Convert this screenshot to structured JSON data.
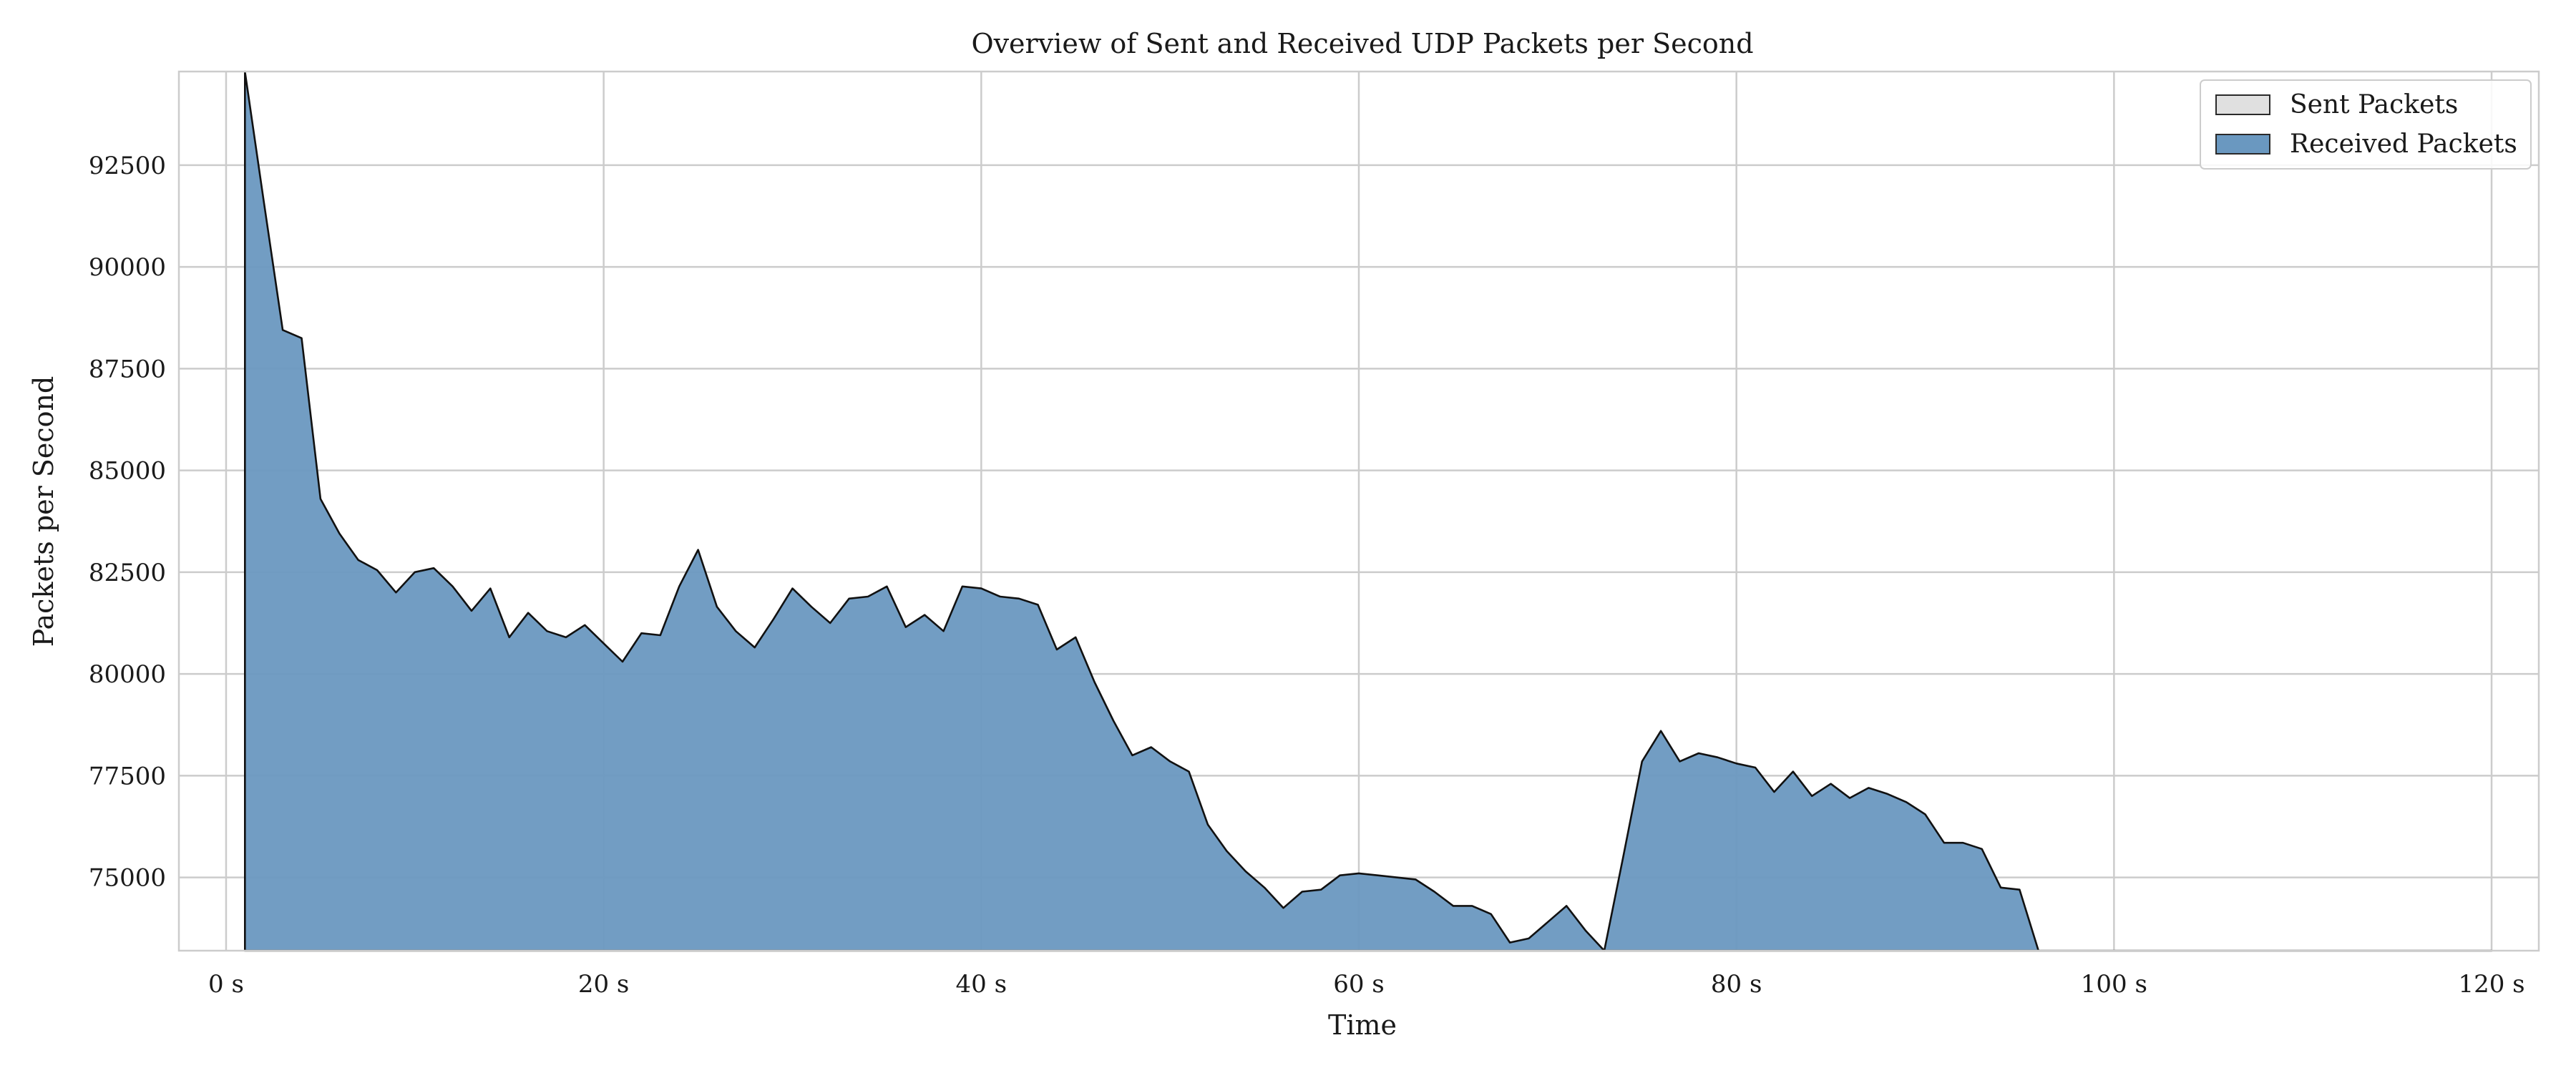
{
  "chart_data": {
    "type": "area",
    "title": "Overview of Sent and Received UDP Packets per Second",
    "xlabel": "Time",
    "ylabel": "Packets per Second",
    "xlim": [
      -2.5,
      122.5
    ],
    "ylim": [
      73200,
      94800
    ],
    "xticks": [
      0,
      20,
      40,
      60,
      80,
      100,
      120
    ],
    "xtick_labels": [
      "0 s",
      "20 s",
      "40 s",
      "60 s",
      "80 s",
      "100 s",
      "120 s"
    ],
    "yticks": [
      75000,
      77500,
      80000,
      82500,
      85000,
      87500,
      90000,
      92500
    ],
    "ytick_labels": [
      "75000",
      "77500",
      "80000",
      "82500",
      "85000",
      "87500",
      "90000",
      "92500"
    ],
    "grid": true,
    "legend_position": "top-right",
    "series": [
      {
        "name": "Sent Packets",
        "color": "#e0e0e0",
        "x": [],
        "values": []
      },
      {
        "name": "Received Packets",
        "color": "#6a98c0",
        "x": [
          1,
          2,
          3,
          4,
          5,
          6,
          7,
          8,
          9,
          10,
          11,
          12,
          13,
          14,
          15,
          16,
          17,
          18,
          19,
          20,
          21,
          22,
          23,
          24,
          25,
          26,
          27,
          28,
          29,
          30,
          31,
          32,
          33,
          34,
          35,
          36,
          37,
          38,
          39,
          40,
          41,
          42,
          43,
          44,
          45,
          46,
          47,
          48,
          49,
          50,
          51,
          52,
          53,
          54,
          55,
          56,
          57,
          58,
          59,
          60,
          61,
          62,
          63,
          64,
          65,
          66,
          67,
          68,
          69,
          70,
          71,
          72,
          73,
          74,
          75,
          76,
          77,
          78,
          79,
          80,
          81,
          82,
          83,
          84,
          85,
          86,
          87,
          88,
          89,
          90,
          91,
          92,
          93,
          94,
          95,
          96,
          97,
          98,
          99,
          100,
          101,
          102,
          103,
          104,
          105,
          106,
          107,
          108,
          109,
          110,
          111,
          112,
          113,
          114,
          115,
          116,
          117,
          118,
          119,
          120
        ],
        "values": [
          94800,
          91600,
          88450,
          88250,
          84300,
          83450,
          82800,
          82550,
          82000,
          82500,
          82600,
          82150,
          81550,
          82100,
          80900,
          81500,
          81050,
          80900,
          81200,
          80750,
          80300,
          81000,
          80950,
          82150,
          83050,
          81650,
          81050,
          80650,
          81350,
          82100,
          81650,
          81250,
          81850,
          81900,
          82150,
          81150,
          81450,
          81050,
          82150,
          82100,
          81900,
          81850,
          81700,
          80600,
          80900,
          79800,
          78850,
          78000,
          78200,
          77850,
          77600,
          76300,
          75650,
          75150,
          74750,
          74250,
          74650,
          74700,
          75050,
          75100,
          75050,
          75000,
          74950,
          74650,
          74300,
          74300,
          74100,
          73400,
          73500,
          73900,
          74300,
          73700,
          73200,
          75500,
          77850,
          78600,
          77850,
          78050,
          77950,
          77800,
          77700,
          77100,
          77600,
          77000,
          77300,
          76950,
          77200,
          77050,
          76850,
          76550,
          75850,
          75850,
          75700,
          74750,
          74700,
          73200,
          73200,
          73200,
          73200,
          73200,
          73200,
          73200,
          73200,
          73200,
          73200,
          73200,
          73200,
          73200,
          73200,
          73200,
          73200,
          73200,
          73200,
          73200,
          73200,
          73200,
          73200,
          73200,
          73200,
          73200
        ]
      }
    ]
  }
}
